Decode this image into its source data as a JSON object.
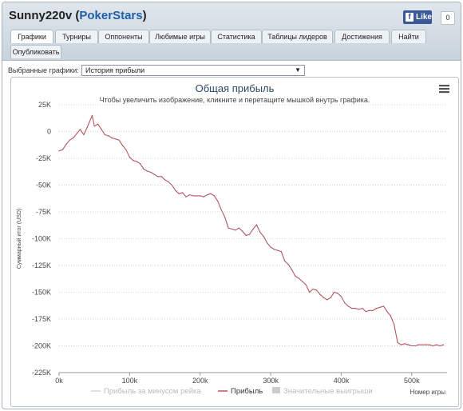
{
  "header": {
    "player": "Sunny220v",
    "site_prefix": " (",
    "site": "PokerStars",
    "site_suffix": ")",
    "like_label": "Like",
    "like_count": "0"
  },
  "tabs": [
    {
      "label": "Графики",
      "active": true
    },
    {
      "label": "Турниры",
      "active": false
    },
    {
      "label": "Оппоненты",
      "active": false
    },
    {
      "label": "Любимые игры",
      "active": false
    },
    {
      "label": "Статистика",
      "active": false
    },
    {
      "label": "Таблицы лидеров",
      "active": false
    },
    {
      "label": "Достижения",
      "active": false
    },
    {
      "label": "Найти",
      "active": false
    },
    {
      "label": "Опубликовать",
      "active": false
    }
  ],
  "chart_selector": {
    "label": "Выбранные графики:",
    "value": "История прибыли",
    "arrow": "▼"
  },
  "icons": {
    "menu": "hamburger-menu-icon",
    "dropdown": "triangle-down-icon",
    "facebook": "facebook-f-icon"
  },
  "colors": {
    "profit_line": "#b5565e",
    "rake_line": "#d9d9d9",
    "big_wins": "#cccccc",
    "tab_active": "#ffffff"
  },
  "chart_data": {
    "type": "line",
    "title": "Общая прибыль",
    "subtitle": "Чтобы увеличить изображение, кликните и перетащите мышкой внутрь графика.",
    "xlabel": "Номер игры",
    "ylabel": "Суммарный итог (USD)",
    "xlim": [
      0,
      550000
    ],
    "ylim": [
      -225000,
      25000
    ],
    "x_ticks": [
      0,
      100000,
      200000,
      300000,
      400000,
      500000
    ],
    "x_tick_labels": [
      "0k",
      "100k",
      "200k",
      "300k",
      "400k",
      "500k"
    ],
    "y_ticks": [
      25000,
      0,
      -25000,
      -50000,
      -75000,
      -100000,
      -125000,
      -150000,
      -175000,
      -200000,
      -225000
    ],
    "y_tick_labels": [
      "25K",
      "0",
      "-25K",
      "-50K",
      "-75K",
      "-100K",
      "-125K",
      "-150K",
      "-175K",
      "-200K",
      "-225K"
    ],
    "grid": true,
    "legend_position": "bottom",
    "legend": [
      {
        "name": "Прибыль за минусом рейка",
        "style": "line",
        "active": false
      },
      {
        "name": "Прибыль",
        "style": "line",
        "active": true
      },
      {
        "name": "Значительные выигрыши",
        "style": "box",
        "active": false
      }
    ],
    "series": [
      {
        "name": "Прибыль",
        "x": [
          0,
          5000,
          10000,
          15000,
          20000,
          25000,
          30000,
          35000,
          40000,
          45000,
          47000,
          50000,
          55000,
          60000,
          65000,
          70000,
          75000,
          80000,
          85000,
          90000,
          95000,
          100000,
          105000,
          110000,
          115000,
          120000,
          125000,
          130000,
          135000,
          140000,
          145000,
          150000,
          155000,
          160000,
          165000,
          170000,
          175000,
          180000,
          185000,
          190000,
          195000,
          200000,
          205000,
          210000,
          215000,
          220000,
          225000,
          230000,
          235000,
          240000,
          245000,
          250000,
          255000,
          260000,
          265000,
          270000,
          275000,
          280000,
          285000,
          290000,
          295000,
          300000,
          305000,
          310000,
          315000,
          320000,
          325000,
          330000,
          335000,
          340000,
          345000,
          350000,
          355000,
          360000,
          365000,
          370000,
          375000,
          380000,
          385000,
          390000,
          395000,
          400000,
          405000,
          410000,
          415000,
          420000,
          425000,
          430000,
          435000,
          440000,
          445000,
          450000,
          455000,
          460000,
          465000,
          470000,
          475000,
          480000,
          485000,
          490000,
          495000,
          500000,
          505000,
          510000,
          515000,
          520000,
          525000,
          530000,
          535000,
          540000,
          545000
        ],
        "values": [
          -18000,
          -17000,
          -12000,
          -8000,
          -6000,
          -2000,
          2000,
          -3000,
          4000,
          12000,
          15000,
          5000,
          7000,
          2000,
          -3000,
          -4000,
          -6000,
          -7000,
          -8000,
          -13000,
          -17000,
          -24000,
          -27000,
          -28000,
          -30000,
          -35000,
          -37000,
          -38000,
          -40000,
          -42000,
          -42000,
          -45000,
          -47000,
          -50000,
          -55000,
          -58000,
          -57000,
          -61000,
          -59000,
          -60000,
          -60000,
          -60000,
          -61000,
          -59000,
          -58000,
          -60000,
          -65000,
          -73000,
          -80000,
          -90000,
          -91000,
          -92000,
          -90000,
          -93000,
          -97000,
          -96000,
          -91000,
          -87000,
          -94000,
          -98000,
          -104000,
          -108000,
          -110000,
          -111000,
          -112000,
          -121000,
          -124000,
          -129000,
          -135000,
          -137000,
          -140000,
          -143000,
          -150000,
          -147000,
          -148000,
          -152000,
          -155000,
          -157000,
          -155000,
          -150000,
          -151000,
          -154000,
          -160000,
          -163000,
          -165000,
          -165000,
          -166000,
          -165000,
          -168000,
          -167000,
          -167000,
          -165000,
          -164000,
          -163000,
          -168000,
          -172000,
          -180000,
          -197000,
          -199000,
          -198000,
          -199000,
          -200000,
          -200000,
          -199000,
          -199000,
          -199000,
          -199000,
          -200000,
          -199000,
          -200000,
          -199000
        ]
      }
    ]
  }
}
